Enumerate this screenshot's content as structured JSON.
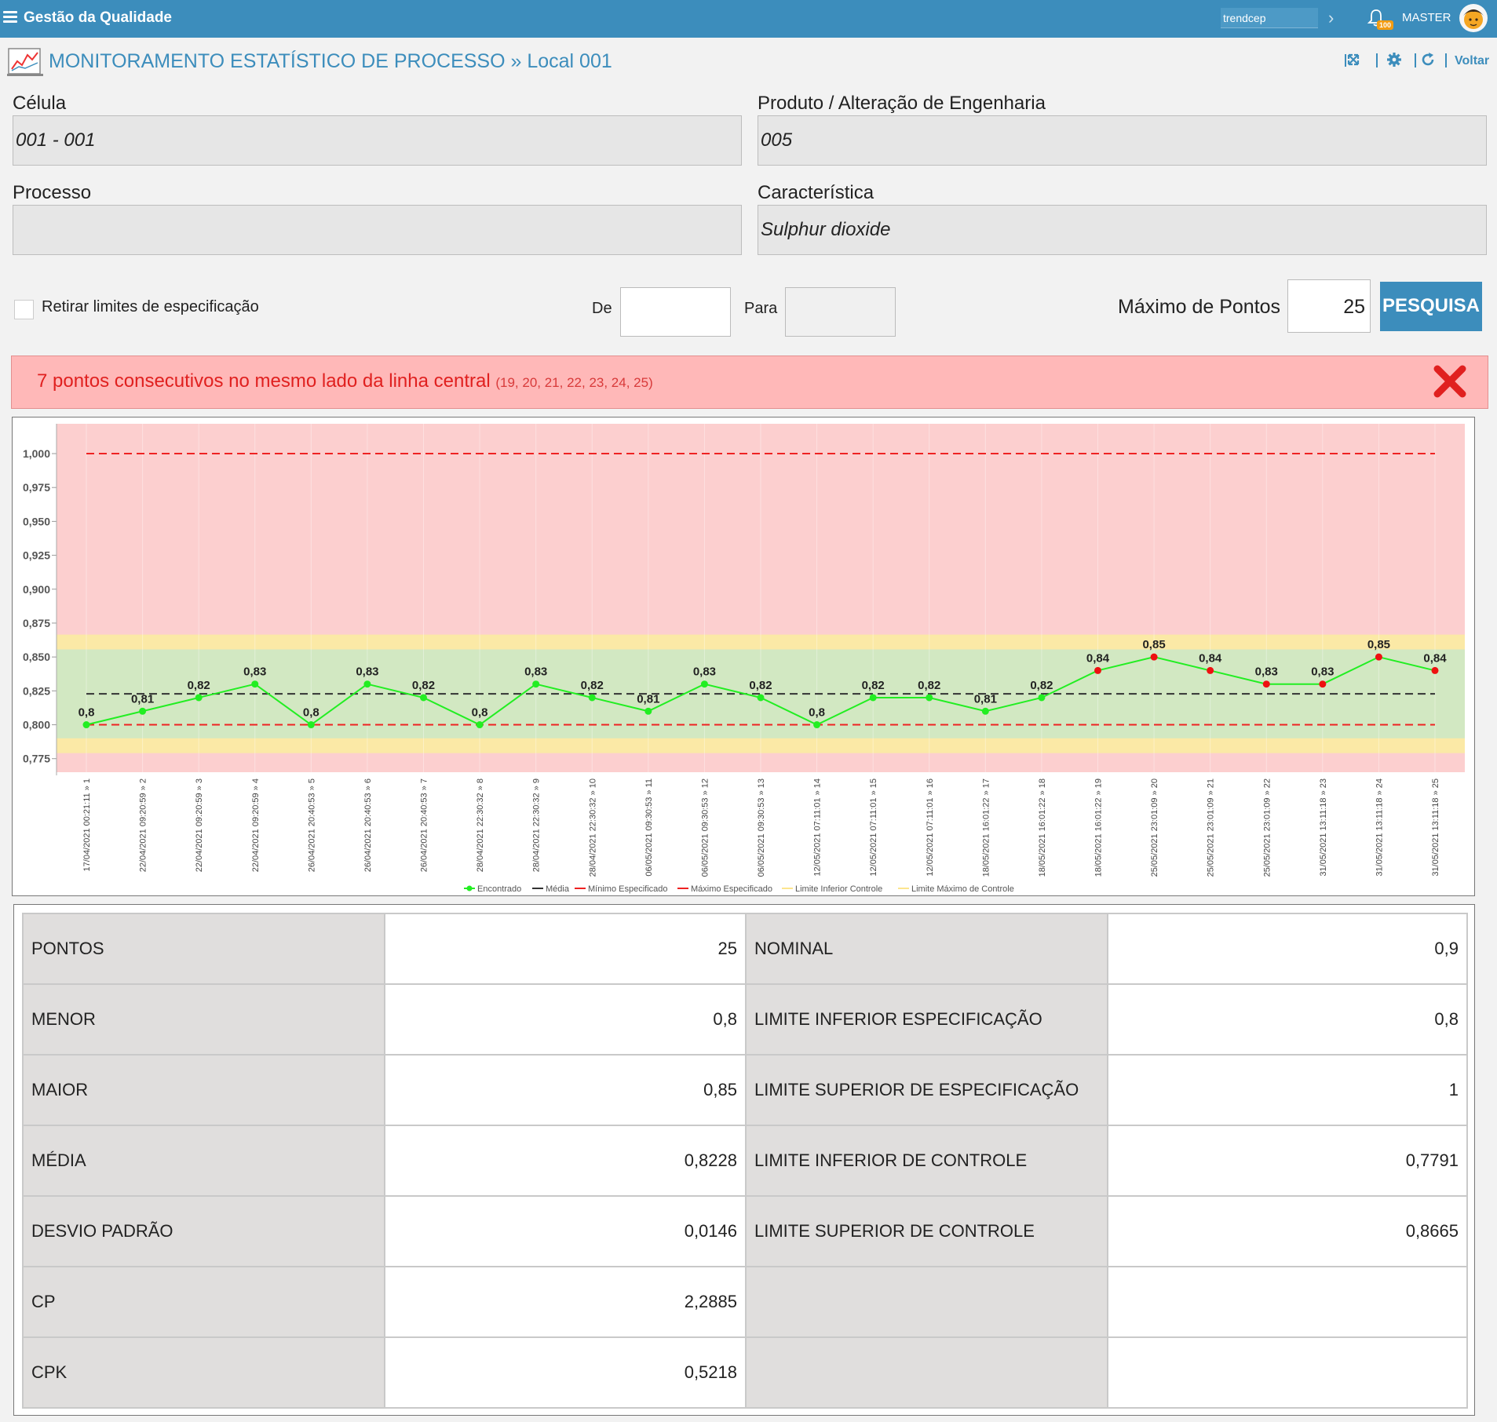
{
  "app": {
    "title": "Gestão da Qualidade",
    "tenant": "trendcep",
    "notifications": "100",
    "user": "MASTER"
  },
  "page": {
    "title": "MONITORAMENTO ESTATÍSTICO DE PROCESSO » Local 001",
    "back_label": "Voltar"
  },
  "fields": {
    "celula_label": "Célula",
    "celula_value": "001 - 001",
    "produto_label": "Produto / Alteração de Engenharia",
    "produto_value": "005",
    "processo_label": "Processo",
    "processo_value": "",
    "caracteristica_label": "Característica",
    "caracteristica_value": "Sulphur dioxide"
  },
  "filters": {
    "remove_spec_label": "Retirar limites de especificação",
    "de_label": "De",
    "para_label": "Para",
    "max_points_label": "Máximo de Pontos",
    "max_points_value": "25",
    "search_label": "PESQUISA"
  },
  "alert": {
    "message": "7 pontos consecutivos no mesmo lado da linha central",
    "points": "(19, 20, 21, 22, 23, 24, 25)"
  },
  "colors": {
    "accent": "#3c8dbc",
    "found": "#22ee22",
    "out": "#ee1111",
    "mean": "#333333",
    "spec": "#ee2222",
    "control": "#fce58e",
    "zone_red": "#fccfcf",
    "zone_yellow": "#fbe9a6",
    "zone_green": "#d2e8c2"
  },
  "chart_data": {
    "type": "line",
    "y_ticks": [
      "1,000",
      "0,975",
      "0,950",
      "0,925",
      "0,900",
      "0,875",
      "0,850",
      "0,825",
      "0,800",
      "0,775"
    ],
    "ylim": [
      0.765,
      1.022
    ],
    "x": [
      "17/04/2021 00:21:11 » 1",
      "22/04/2021 09:20:59 » 2",
      "22/04/2021 09:20:59 » 3",
      "22/04/2021 09:20:59 » 4",
      "26/04/2021 20:40:53 » 5",
      "26/04/2021 20:40:53 » 6",
      "26/04/2021 20:40:53 » 7",
      "28/04/2021 22:30:32 » 8",
      "28/04/2021 22:30:32 » 9",
      "28/04/2021 22:30:32 » 10",
      "06/05/2021 09:30:53 » 11",
      "06/05/2021 09:30:53 » 12",
      "06/05/2021 09:30:53 » 13",
      "12/05/2021 07:11:01 » 14",
      "12/05/2021 07:11:01 » 15",
      "12/05/2021 07:11:01 » 16",
      "18/05/2021 16:01:22 » 17",
      "18/05/2021 16:01:22 » 18",
      "18/05/2021 16:01:22 » 19",
      "25/05/2021 23:01:09 » 20",
      "25/05/2021 23:01:09 » 21",
      "25/05/2021 23:01:09 » 22",
      "31/05/2021 13:11:18 » 23",
      "31/05/2021 13:11:18 » 24",
      "31/05/2021 13:11:18 » 25"
    ],
    "values": [
      0.8,
      0.81,
      0.82,
      0.83,
      0.8,
      0.83,
      0.82,
      0.8,
      0.83,
      0.82,
      0.81,
      0.83,
      0.82,
      0.8,
      0.82,
      0.82,
      0.81,
      0.82,
      0.84,
      0.85,
      0.84,
      0.83,
      0.83,
      0.85,
      0.84
    ],
    "labels": [
      "0,8",
      "0,81",
      "0,82",
      "0,83",
      "0,8",
      "0,83",
      "0,82",
      "0,8",
      "0,83",
      "0,82",
      "0,81",
      "0,83",
      "0,82",
      "0,8",
      "0,82",
      "0,82",
      "0,81",
      "0,82",
      "0,84",
      "0,85",
      "0,84",
      "0,83",
      "0,83",
      "0,85",
      "0,84"
    ],
    "flagged": [
      19,
      20,
      21,
      22,
      23,
      24,
      25
    ],
    "mean": 0.8228,
    "spec_min": 0.8,
    "spec_max": 1.0,
    "lcl": 0.7791,
    "ucl": 0.8665,
    "legend": [
      "Encontrado",
      "Média",
      "Mínimo Especificado",
      "Máximo Especificado",
      "Limite Inferior Controle",
      "Limite Máximo de Controle"
    ],
    "legend_position": "bottom",
    "grid": true
  },
  "stats": {
    "rows": [
      {
        "k1": "PONTOS",
        "v1": "25",
        "k2": "NOMINAL",
        "v2": "0,9"
      },
      {
        "k1": "MENOR",
        "v1": "0,8",
        "k2": "LIMITE INFERIOR ESPECIFICAÇÃO",
        "v2": "0,8"
      },
      {
        "k1": "MAIOR",
        "v1": "0,85",
        "k2": "LIMITE SUPERIOR DE ESPECIFICAÇÃO",
        "v2": "1"
      },
      {
        "k1": "MÉDIA",
        "v1": "0,8228",
        "k2": "LIMITE INFERIOR DE CONTROLE",
        "v2": "0,7791"
      },
      {
        "k1": "DESVIO PADRÃO",
        "v1": "0,0146",
        "k2": "LIMITE SUPERIOR DE CONTROLE",
        "v2": "0,8665"
      },
      {
        "k1": "CP",
        "v1": "2,2885",
        "k2": "",
        "v2": ""
      },
      {
        "k1": "CPK",
        "v1": "0,5218",
        "k2": "",
        "v2": ""
      }
    ]
  }
}
